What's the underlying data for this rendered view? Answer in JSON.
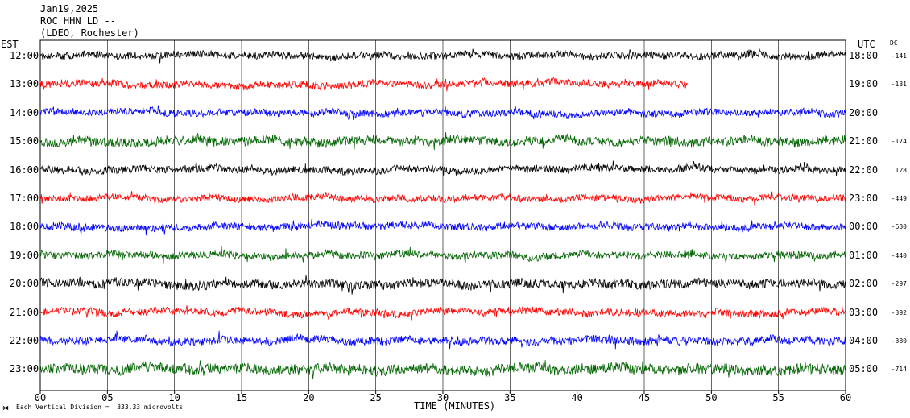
{
  "header": {
    "date": "Jan19,2025",
    "station": "ROC HHN LD --",
    "location": "(LDEO, Rochester)"
  },
  "labels": {
    "left_zone": "EST",
    "right_zone": "UTC",
    "dc_header": "DC",
    "xlabel": "TIME (MINUTES)",
    "footer_scale": "Each Vertical Division =  333.33 microvolts"
  },
  "chart_data": {
    "type": "line",
    "subtype": "helicorder seismogram",
    "title": "ROC HHN LD -- (LDEO, Rochester) Jan19,2025",
    "xlabel": "TIME (MINUTES)",
    "xlim": [
      0,
      60
    ],
    "x_ticks": [
      "00",
      "05",
      "10",
      "15",
      "20",
      "25",
      "30",
      "35",
      "40",
      "45",
      "50",
      "55",
      "60"
    ],
    "vertical_division_microvolts": 333.33,
    "grid": "vertical lines every 5 minutes",
    "color_cycle": [
      "#000000",
      "#ff0000",
      "#0000ff",
      "#006400"
    ],
    "rows": [
      {
        "est": "12:00",
        "utc": "18:00",
        "dc": "-141",
        "color": "#000000",
        "end_minute": 60,
        "amp": 1.0
      },
      {
        "est": "13:00",
        "utc": "19:00",
        "dc": "-131",
        "color": "#ff0000",
        "end_minute": 48.2,
        "amp": 1.0
      },
      {
        "est": "14:00",
        "utc": "20:00",
        "dc": "",
        "color": "#0000ff",
        "end_minute": 60,
        "amp": 1.0
      },
      {
        "est": "15:00",
        "utc": "21:00",
        "dc": "-174",
        "color": "#006400",
        "end_minute": 60,
        "amp": 1.15
      },
      {
        "est": "16:00",
        "utc": "22:00",
        "dc": "128",
        "color": "#000000",
        "end_minute": 60,
        "amp": 1.0
      },
      {
        "est": "17:00",
        "utc": "23:00",
        "dc": "-449",
        "color": "#ff0000",
        "end_minute": 60,
        "amp": 0.95
      },
      {
        "est": "18:00",
        "utc": "00:00",
        "dc": "-630",
        "color": "#0000ff",
        "end_minute": 60,
        "amp": 1.0
      },
      {
        "est": "19:00",
        "utc": "01:00",
        "dc": "-440",
        "color": "#006400",
        "end_minute": 60,
        "amp": 1.0
      },
      {
        "est": "20:00",
        "utc": "02:00",
        "dc": "-297",
        "color": "#000000",
        "end_minute": 60,
        "amp": 1.1
      },
      {
        "est": "21:00",
        "utc": "03:00",
        "dc": "-392",
        "color": "#ff0000",
        "end_minute": 60,
        "amp": 1.0
      },
      {
        "est": "22:00",
        "utc": "04:00",
        "dc": "-380",
        "color": "#0000ff",
        "end_minute": 60,
        "amp": 1.05
      },
      {
        "est": "23:00",
        "utc": "05:00",
        "dc": "-714",
        "color": "#006400",
        "end_minute": 60,
        "amp": 1.2
      }
    ]
  }
}
